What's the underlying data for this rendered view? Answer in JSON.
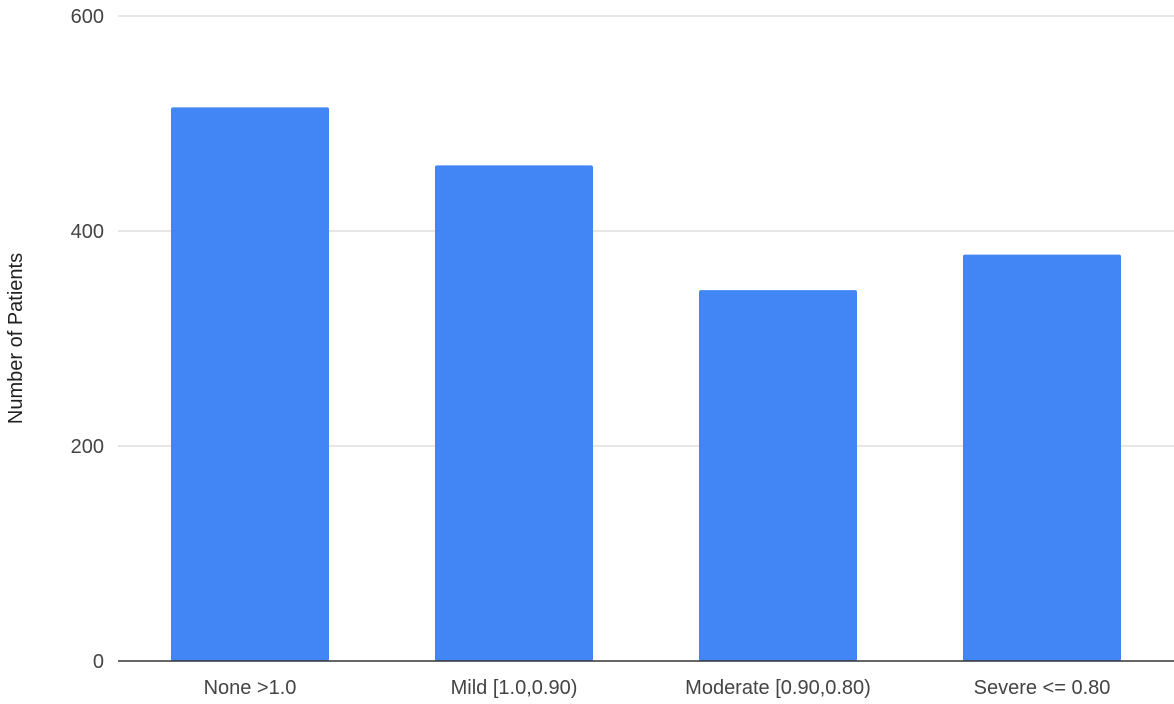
{
  "chart_data": {
    "type": "bar",
    "title": "",
    "xlabel": "",
    "ylabel": "Number of Patients",
    "categories": [
      "None >1.0",
      "Mild [1.0,0.90)",
      "Moderate [0.90,0.80)",
      "Severe <= 0.80"
    ],
    "values": [
      515,
      461,
      345,
      378
    ],
    "ylim": [
      0,
      600
    ],
    "yticks": [
      "0",
      "200",
      "400",
      "600"
    ],
    "grid": true,
    "bar_color": "#4285F4",
    "grid_color": "#cccccc",
    "axis_color": "#333333"
  }
}
